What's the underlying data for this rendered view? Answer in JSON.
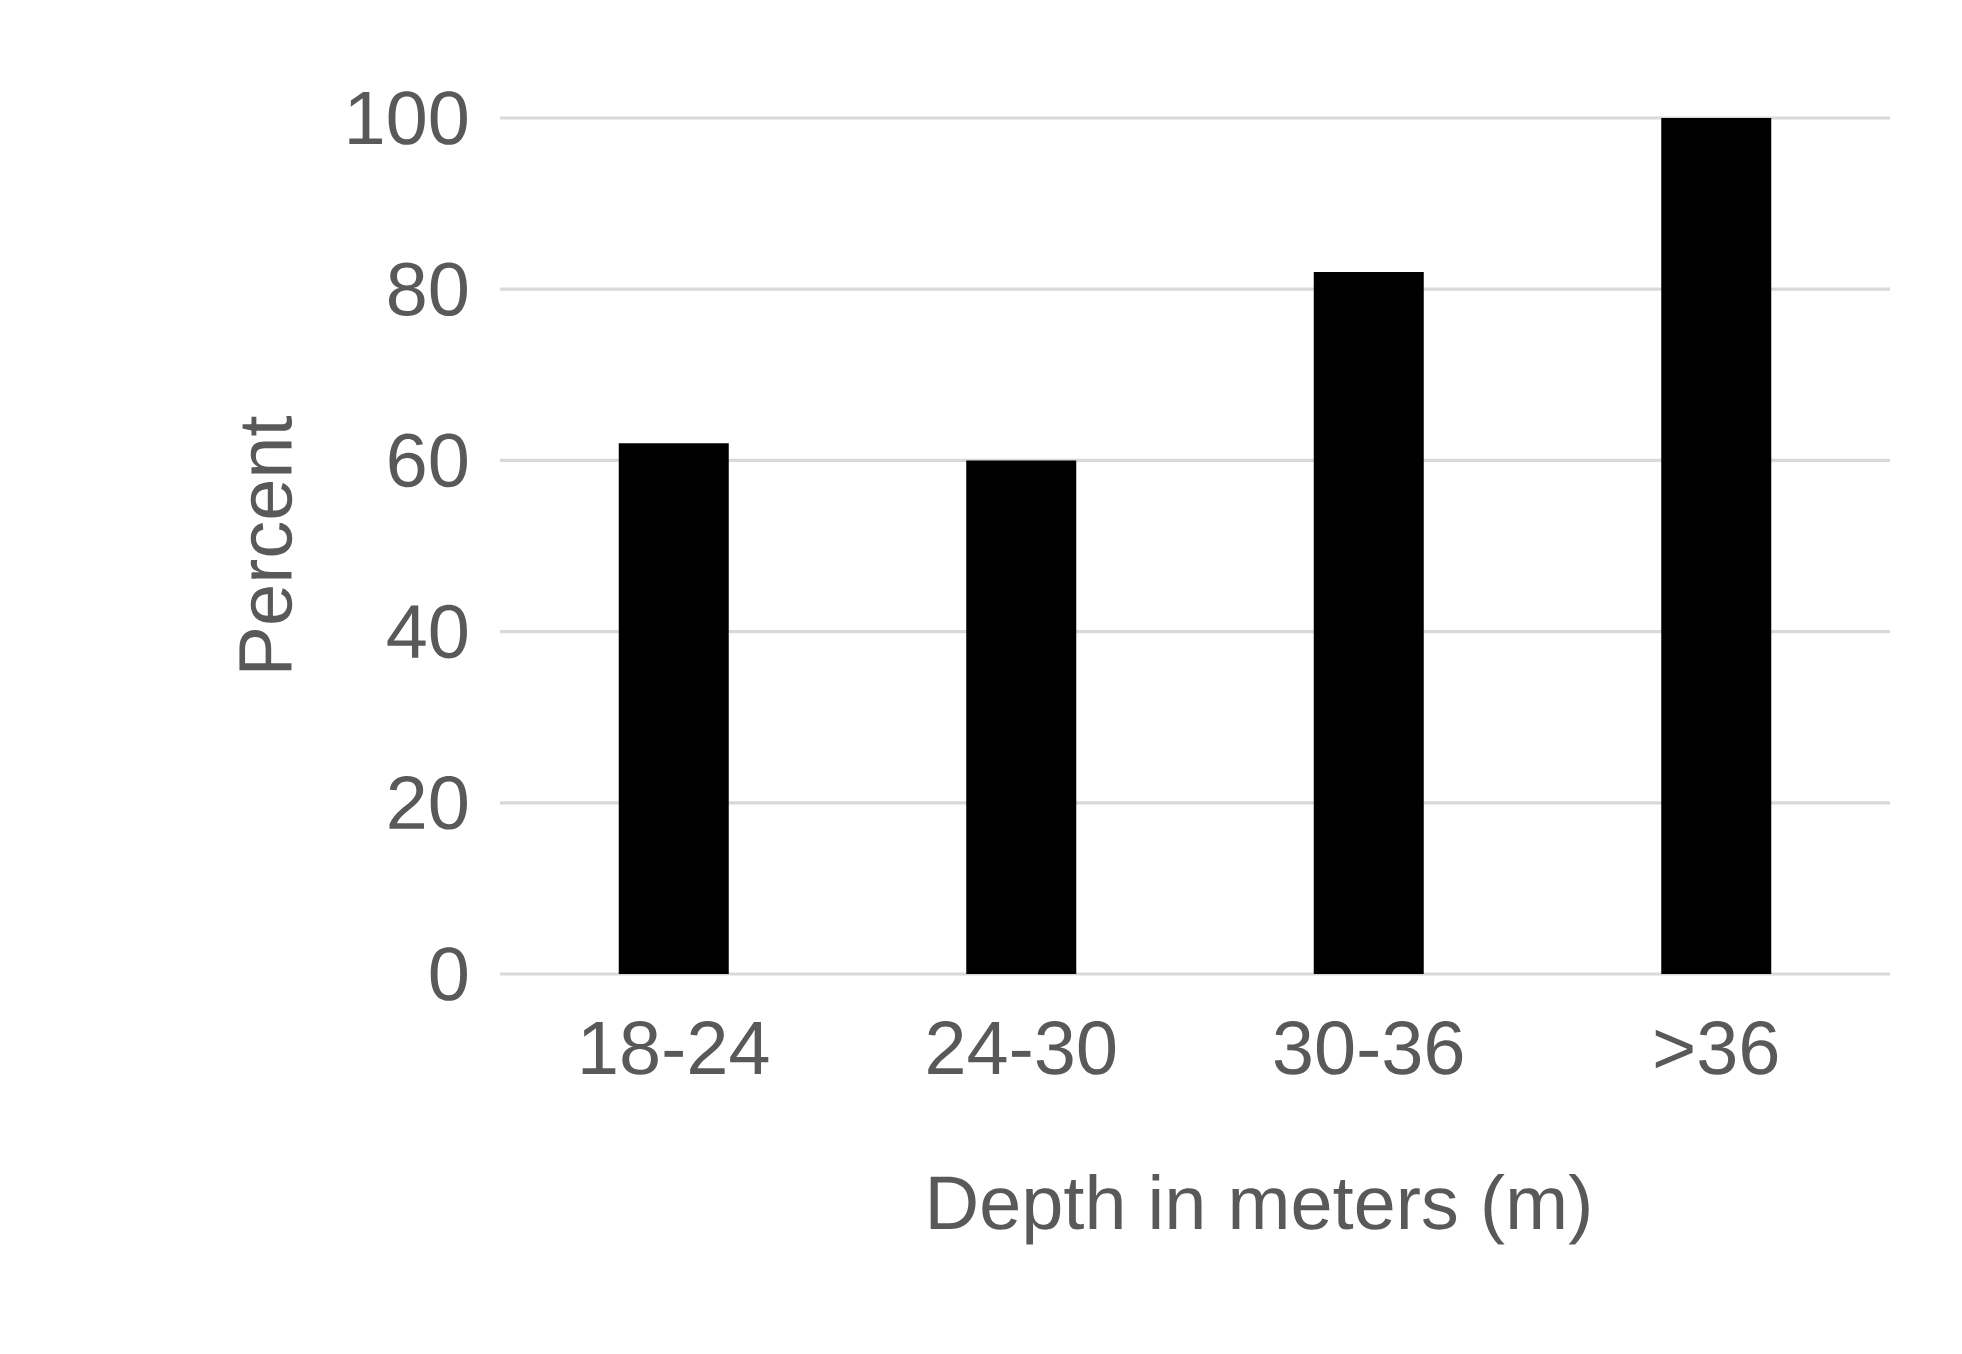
{
  "chart_data": {
    "type": "bar",
    "xlabel": "Depth in meters (m)",
    "ylabel": "Percent",
    "categories": [
      "18-24",
      "24-30",
      "30-36",
      ">36"
    ],
    "values": [
      62,
      60,
      82,
      100
    ],
    "color": "#000000",
    "ylim": [
      0,
      100
    ],
    "yticks": [
      0,
      20,
      40,
      60,
      80,
      100
    ],
    "grid": "y"
  }
}
